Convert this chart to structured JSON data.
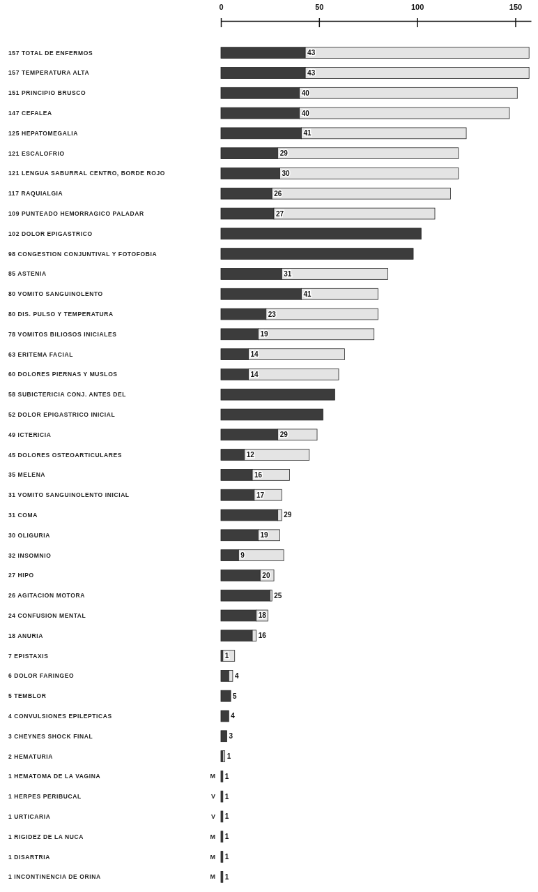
{
  "chart_data": {
    "type": "bar",
    "orientation": "horizontal",
    "stacked": true,
    "categories": [
      "157 TOTAL DE ENFERMOS",
      "157 TEMPERATURA ALTA",
      "151 PRINCIPIO BRUSCO",
      "147 CEFALEA",
      "125 HEPATOMEGALIA",
      "121 ESCALOFRIO",
      "121 LENGUA SABURRAL CENTRO, BORDE ROJO",
      "117 RAQUIALGIA",
      "109 PUNTEADO HEMORRAGICO PALADAR",
      "102 DOLOR EPIGASTRICO",
      "98 CONGESTION CONJUNTIVAL Y FOTOFOBIA",
      "85 ASTENIA",
      "80 VOMITO SANGUINOLENTO",
      "80 DIS. PULSO Y TEMPERATURA",
      "78 VOMITOS BILIOSOS INICIALES",
      "63 ERITEMA FACIAL",
      "60 DOLORES PIERNAS Y MUSLOS",
      "58 SUBICTERICIA CONJ. ANTES DEL",
      "52 DOLOR EPIGASTRICO INICIAL",
      "49 ICTERICIA",
      "45 DOLORES OSTEOARTICULARES",
      "35 MELENA",
      "31 VOMITO SANGUINOLENTO INICIAL",
      "31 COMA",
      "30 OLIGURIA",
      "32 INSOMNIO",
      "27 HIPO",
      "26 AGITACION MOTORA",
      "24 CONFUSION MENTAL",
      "18 ANURIA",
      "7 EPISTAXIS",
      "6 DOLOR FARINGEO",
      "5 TEMBLOR",
      "4 CONVULSIONES EPILEPTICAS",
      "3 CHEYNES SHOCK FINAL",
      "2 HEMATURIA",
      "1 HEMATOMA DE LA VAGINA",
      "1 HERPES PERIBUCAL",
      "1 URTICARIA",
      "1 RIGIDEZ DE LA NUCA",
      "1 DISARTRIA",
      "1 INCONTINENCIA DE ORINA"
    ],
    "series": [
      {
        "color": "#3c3c3c",
        "values": [
          43,
          43,
          40,
          40,
          41,
          29,
          30,
          26,
          27,
          102,
          98,
          31,
          41,
          23,
          19,
          14,
          14,
          58,
          52,
          29,
          12,
          16,
          17,
          29,
          19,
          9,
          20,
          25,
          18,
          16,
          1,
          4,
          5,
          4,
          3,
          1,
          1,
          1,
          1,
          1,
          1,
          1
        ],
        "value_labels": [
          "43",
          "43",
          "40",
          "40",
          "41",
          "29",
          "30",
          "26",
          "27",
          null,
          null,
          "31",
          "41",
          "23",
          "19",
          "14",
          "14",
          null,
          null,
          "29",
          "12",
          "16",
          "17",
          "29",
          "19",
          "9",
          "20",
          "25",
          "18",
          "16",
          "1",
          "4",
          "5",
          "4",
          "3",
          "1",
          "1",
          "1",
          "1",
          "1",
          "1",
          "1"
        ]
      },
      {
        "color": "#e4e4e4",
        "values": [
          114,
          114,
          111,
          107,
          84,
          92,
          91,
          91,
          82,
          0,
          0,
          54,
          39,
          57,
          59,
          49,
          46,
          0,
          0,
          20,
          33,
          19,
          14,
          2,
          11,
          23,
          7,
          1,
          6,
          2,
          6,
          2,
          0,
          0,
          0,
          1,
          0,
          0,
          0,
          0,
          0,
          0
        ]
      }
    ],
    "xlim": [
      0,
      158
    ],
    "xticks": [
      0,
      50,
      100,
      150
    ],
    "annotations": [
      "M",
      "V",
      "V",
      "M",
      "M",
      "M"
    ]
  }
}
